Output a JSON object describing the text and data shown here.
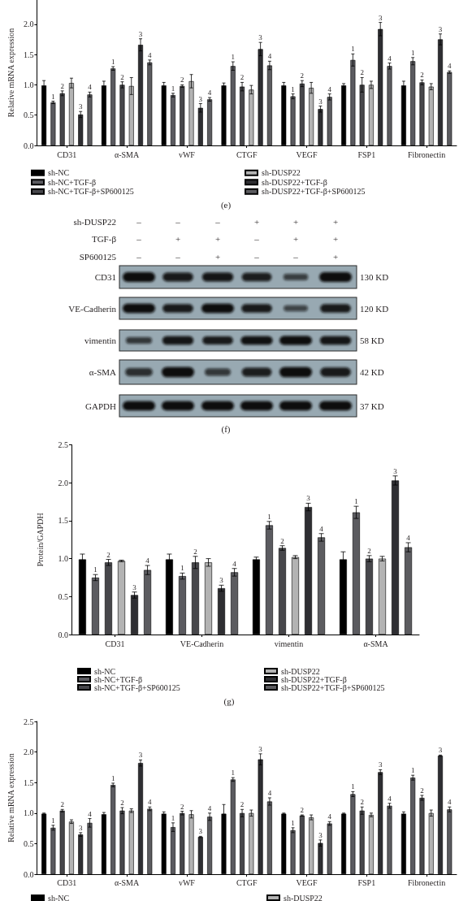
{
  "chart_data": [
    {
      "type": "bar",
      "ylabel": "Relative mRNA expression",
      "categories": [
        "CD31",
        "α-SMA",
        "vWF",
        "CTGF",
        "VEGF",
        "FSP1",
        "Fibronectin"
      ],
      "series": [
        {
          "name": "sh-NC",
          "color": "#000000",
          "values": [
            0.99,
            0.99,
            0.99,
            0.99,
            0.99,
            0.99,
            0.99
          ],
          "errors": [
            0.08,
            0.07,
            0.05,
            0.04,
            0.05,
            0.03,
            0.07
          ]
        },
        {
          "name": "sh-NC+TGF-β",
          "color": "#5b5b60",
          "values": [
            0.71,
            1.27,
            0.83,
            1.31,
            0.81,
            1.41,
            1.39
          ],
          "errors": [
            0.02,
            0.03,
            0.03,
            0.07,
            0.04,
            0.1,
            0.06
          ]
        },
        {
          "name": "sh-NC+TGF-β+SP600125",
          "color": "#47474b",
          "values": [
            0.86,
            1.0,
            0.98,
            0.97,
            1.02,
            1.0,
            1.04
          ],
          "errors": [
            0.04,
            0.05,
            0.02,
            0.07,
            0.05,
            0.12,
            0.04
          ]
        },
        {
          "name": "sh-DUSP22",
          "color": "#b3b3b3",
          "values": [
            1.03,
            0.98,
            1.06,
            0.92,
            0.95,
            1.0,
            0.97
          ],
          "errors": [
            0.08,
            0.14,
            0.11,
            0.07,
            0.09,
            0.06,
            0.05
          ]
        },
        {
          "name": "sh-DUSP22+TGF-β",
          "color": "#2e2e32",
          "values": [
            0.51,
            1.66,
            0.62,
            1.59,
            0.6,
            1.92,
            1.75
          ],
          "errors": [
            0.05,
            0.1,
            0.07,
            0.11,
            0.05,
            0.11,
            0.09
          ]
        },
        {
          "name": "sh-DUSP22+TGF-β+SP600125",
          "color": "#5c5c60",
          "values": [
            0.84,
            1.37,
            0.76,
            1.32,
            0.8,
            1.31,
            1.21
          ],
          "errors": [
            0.04,
            0.04,
            0.03,
            0.07,
            0.05,
            0.05,
            0.02
          ]
        }
      ],
      "ylim": [
        0,
        2.4
      ],
      "yticks": [
        {
          "value": 0,
          "label": "0.0"
        },
        0.5,
        {
          "value": 1,
          "label": "1.0"
        },
        1.5,
        {
          "value": 2,
          "label": "2.0"
        }
      ],
      "legend": "bottom",
      "annotations": [
        "1",
        "2",
        "3",
        "4",
        "1",
        "2",
        "3",
        "4",
        "1",
        "2",
        "3",
        "4",
        "1",
        "2",
        "3",
        "4",
        "1",
        "2",
        "3",
        "4",
        "1",
        "2",
        "3",
        "4",
        "1",
        "2",
        "3",
        "4",
        "(e)"
      ]
    },
    {
      "type": "other",
      "categories": [
        null,
        null,
        null,
        null,
        null,
        null
      ],
      "y_categories": [
        "sh-DUSP22",
        "TGF-β",
        "SP600125"
      ],
      "cell_labels": [
        [
          "–",
          "–",
          "–",
          "+",
          "+",
          "+"
        ],
        [
          "–",
          "+",
          "+",
          "–",
          "+",
          "+"
        ],
        [
          "–",
          "–",
          "+",
          "–",
          "–",
          "+"
        ]
      ]
    },
    {
      "type": "other",
      "categories": [
        null,
        null,
        null,
        null,
        null,
        null
      ],
      "y_categories": [
        "CD31",
        "VE-Cadherin",
        "vimentin",
        "α-SMA",
        "GAPDH"
      ],
      "y2_categories": [
        "130 KD",
        "120 KD",
        "58 KD",
        "42 KD",
        "37 KD"
      ],
      "annotations": [
        "(f)"
      ]
    },
    {
      "type": "bar",
      "ylabel": "Protein/GAPDH",
      "categories": [
        "CD31",
        "VE-Cadherin",
        "vimentin",
        "α-SMA"
      ],
      "series": [
        {
          "name": "sh-NC",
          "color": "#000000",
          "values": [
            0.99,
            0.99,
            0.99,
            0.99
          ],
          "errors": [
            0.07,
            0.07,
            0.03,
            0.1
          ]
        },
        {
          "name": "sh-NC+TGF-β",
          "color": "#5b5b60",
          "values": [
            0.75,
            0.77,
            1.44,
            1.61
          ],
          "errors": [
            0.04,
            0.04,
            0.05,
            0.08
          ]
        },
        {
          "name": "sh-NC+TGF-β+SP600125",
          "color": "#47474b",
          "values": [
            0.95,
            0.95,
            1.14,
            1.0
          ],
          "errors": [
            0.04,
            0.08,
            0.03,
            0.04
          ]
        },
        {
          "name": "sh-DUSP22",
          "color": "#b3b3b3",
          "values": [
            0.97,
            0.95,
            1.02,
            1.0
          ],
          "errors": [
            0.01,
            0.05,
            0.02,
            0.03
          ]
        },
        {
          "name": "sh-DUSP22+TGF-β",
          "color": "#2e2e32",
          "values": [
            0.52,
            0.61,
            1.68,
            2.03
          ],
          "errors": [
            0.04,
            0.04,
            0.05,
            0.06
          ]
        },
        {
          "name": "sh-DUSP22+TGF-β+SP600125",
          "color": "#5c5c60",
          "values": [
            0.85,
            0.82,
            1.28,
            1.15
          ],
          "errors": [
            0.06,
            0.05,
            0.05,
            0.06
          ]
        }
      ],
      "ylim": [
        0,
        2.5
      ],
      "yticks": [
        {
          "value": 0,
          "label": "0.0"
        },
        0.5,
        {
          "value": 1,
          "label": "1.0"
        },
        1.5,
        {
          "value": 2,
          "label": "2.0"
        },
        2.5
      ],
      "legend": "bottom",
      "annotations": [
        "1",
        "2",
        "3",
        "4",
        "1",
        "2",
        "3",
        "4",
        "1",
        "2",
        "3",
        "4",
        "1",
        "2",
        "3",
        "4",
        "(g)"
      ]
    },
    {
      "type": "bar",
      "ylabel": "Relative mRNA expression",
      "categories": [
        "CD31",
        "α-SMA",
        "vWF",
        "CTGF",
        "VEGF",
        "FSP1",
        "Fibronectin"
      ],
      "series": [
        {
          "name": "sh-NC",
          "color": "#000000",
          "values": [
            0.99,
            0.98,
            0.99,
            0.99,
            0.99,
            0.99,
            0.99
          ],
          "errors": [
            0.01,
            0.03,
            0.03,
            0.15,
            0.01,
            0.01,
            0.03
          ]
        },
        {
          "color": "#5b5b60",
          "values": [
            0.76,
            1.46,
            0.77,
            1.55,
            0.72,
            1.31,
            1.58
          ],
          "errors": [
            0.04,
            0.03,
            0.07,
            0.03,
            0.04,
            0.04,
            0.04
          ]
        },
        {
          "color": "#47474b",
          "values": [
            1.04,
            1.04,
            1.0,
            1.0,
            0.96,
            1.04,
            1.25
          ],
          "errors": [
            0.02,
            0.05,
            0.03,
            0.06,
            0.01,
            0.06,
            0.04
          ]
        },
        {
          "name": "sh-DUSP22",
          "color": "#b3b3b3",
          "values": [
            0.86,
            1.04,
            0.98,
            1.0,
            0.93,
            0.97,
            1.0
          ],
          "errors": [
            0.03,
            0.03,
            0.06,
            0.05,
            0.04,
            0.03,
            0.05
          ]
        },
        {
          "color": "#2e2e32",
          "values": [
            0.65,
            1.82,
            0.61,
            1.88,
            0.51,
            1.67,
            1.94
          ],
          "errors": [
            0.03,
            0.05,
            0.01,
            0.09,
            0.05,
            0.04,
            0.01
          ]
        },
        {
          "color": "#5c5c60",
          "values": [
            0.84,
            1.07,
            0.94,
            1.19,
            0.83,
            1.12,
            1.06
          ],
          "errors": [
            0.07,
            0.03,
            0.06,
            0.06,
            0.03,
            0.04,
            0.04
          ]
        }
      ],
      "ylim": [
        0,
        2.5
      ],
      "yticks": [
        {
          "value": 0,
          "label": "0.0"
        },
        0.5,
        {
          "value": 1,
          "label": "1.0"
        },
        1.5,
        {
          "value": 2,
          "label": "2.0"
        },
        2.5
      ],
      "legend": "bottom",
      "annotations": [
        "1",
        "2",
        "3",
        "4",
        "1",
        "2",
        "3",
        "4",
        "1",
        "2",
        "3",
        "4",
        "1",
        "2",
        "3",
        "4",
        "1",
        "2",
        "3",
        "4",
        "1",
        "2",
        "3",
        "4",
        "1",
        "2",
        "3",
        "4"
      ]
    }
  ]
}
